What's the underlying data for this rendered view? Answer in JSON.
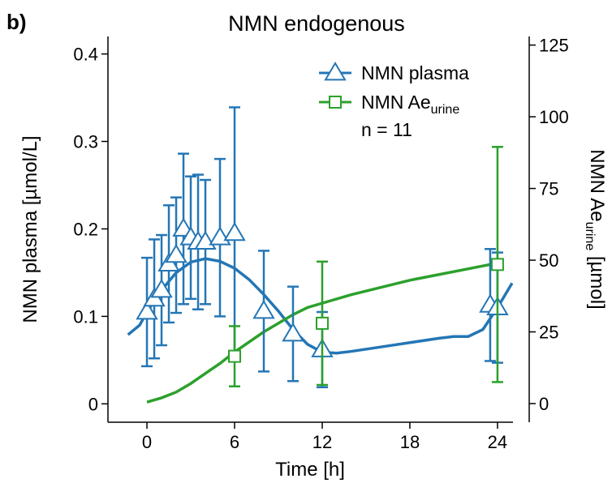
{
  "chart_data": {
    "type": "errorbar-scatter",
    "panel_label": "b)",
    "title": "NMN endogenous",
    "xlabel": "Time [h]",
    "ylabel": "NMN plasma [µmol/L]",
    "y2label": {
      "text": "NMN Ae",
      "subscript": "urine",
      "suffix": " [µmol]"
    },
    "annotation": "n = 11",
    "xlim": [
      -2.67,
      25.06
    ],
    "ylim": [
      -0.021,
      0.42
    ],
    "y2lim": [
      -6.5,
      128
    ],
    "xticks": [
      0,
      6,
      12,
      18,
      24
    ],
    "yticks": [
      0,
      0.1,
      0.2,
      0.3,
      0.4
    ],
    "y2ticks": [
      0,
      25,
      50,
      75,
      100,
      125
    ],
    "series": [
      {
        "name": "NMN plasma",
        "subscript": null,
        "color": "#2476b5",
        "marker": "triangle",
        "axis": "y",
        "x": [
          0,
          0.5,
          1,
          1.5,
          2,
          2.5,
          3,
          3.5,
          4,
          5,
          6,
          8,
          10,
          12,
          23.5,
          24
        ],
        "values": [
          0.105,
          0.12,
          0.13,
          0.16,
          0.17,
          0.2,
          0.19,
          0.185,
          0.185,
          0.19,
          0.195,
          0.106,
          0.08,
          0.062,
          0.113,
          0.11
        ],
        "errors": [
          0.062,
          0.068,
          0.063,
          0.067,
          0.066,
          0.086,
          0.07,
          0.077,
          0.071,
          0.09,
          0.144,
          0.069,
          0.054,
          0.043,
          0.064,
          0.063
        ],
        "fit": {
          "x": [
            -1.3,
            -0.5,
            0,
            1,
            2,
            3,
            4,
            5,
            6,
            7,
            8,
            9,
            10,
            11,
            12,
            13,
            14,
            16,
            18,
            20,
            21,
            22,
            23,
            24,
            25
          ],
          "values": [
            0.079,
            0.09,
            0.105,
            0.13,
            0.15,
            0.162,
            0.166,
            0.163,
            0.155,
            0.142,
            0.125,
            0.106,
            0.085,
            0.068,
            0.059,
            0.058,
            0.06,
            0.065,
            0.07,
            0.075,
            0.077,
            0.077,
            0.085,
            0.11,
            0.138
          ]
        }
      },
      {
        "name": "NMN Ae",
        "subscript": "urine",
        "color": "#2ca02c",
        "marker": "square",
        "axis": "y2",
        "x": [
          6,
          12,
          24
        ],
        "values": [
          16.5,
          28,
          48.5
        ],
        "errors": [
          10.5,
          21.5,
          41
        ],
        "fit": {
          "x": [
            0,
            1,
            2,
            3,
            4,
            5,
            6,
            7,
            8,
            9,
            10,
            11,
            12,
            14,
            16,
            18,
            20,
            22,
            24
          ],
          "values": [
            0.5,
            2,
            4,
            7,
            10.5,
            14,
            18,
            21.5,
            25,
            28,
            31,
            33.5,
            35,
            38,
            40.5,
            43,
            45,
            47,
            49
          ]
        }
      }
    ]
  }
}
